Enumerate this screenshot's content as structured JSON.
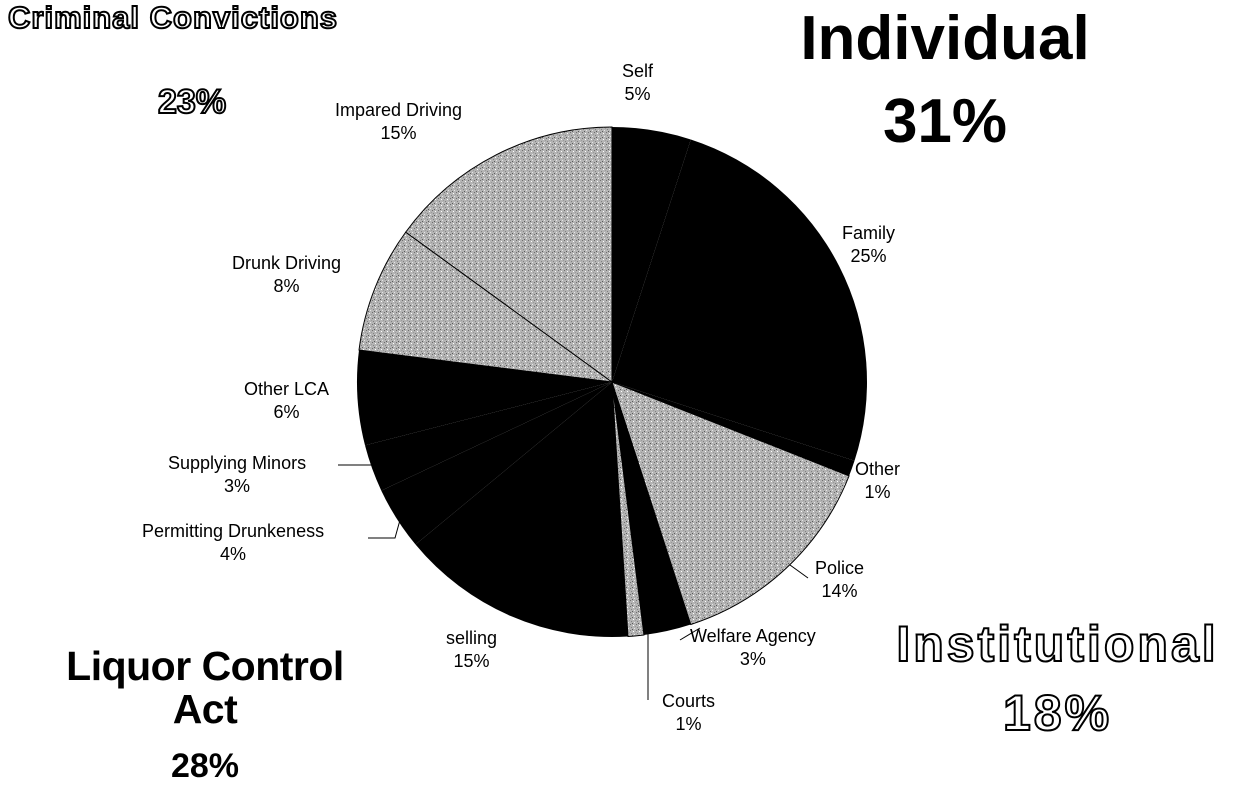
{
  "groups": {
    "criminal": {
      "title": "Criminal Convictions",
      "percent": "23%"
    },
    "individual": {
      "title": "Individual",
      "percent": "31%"
    },
    "lca": {
      "title": "Liquor Control Act",
      "percent": "28%"
    },
    "institutional": {
      "title": "Institutional",
      "percent": "18%"
    }
  },
  "chart_data": {
    "type": "pie",
    "title": "",
    "start_angle_deg": 0,
    "direction": "clockwise",
    "slices": [
      {
        "label": "Self",
        "value": 5,
        "percent_label": "5%",
        "group": "Individual",
        "fill": "dark"
      },
      {
        "label": "Family",
        "value": 25,
        "percent_label": "25%",
        "group": "Individual",
        "fill": "dark"
      },
      {
        "label": "Other",
        "value": 1,
        "percent_label": "1%",
        "group": "Individual",
        "fill": "dark"
      },
      {
        "label": "Police",
        "value": 14,
        "percent_label": "14%",
        "group": "Institutional",
        "fill": "light"
      },
      {
        "label": "Welfare Agency",
        "value": 3,
        "percent_label": "3%",
        "group": "Institutional",
        "fill": "dark"
      },
      {
        "label": "Courts",
        "value": 1,
        "percent_label": "1%",
        "group": "Institutional",
        "fill": "light"
      },
      {
        "label": "selling",
        "value": 15,
        "percent_label": "15%",
        "group": "Liquor Control Act",
        "fill": "dark"
      },
      {
        "label": "Permitting Drunkeness",
        "value": 4,
        "percent_label": "4%",
        "group": "Liquor Control Act",
        "fill": "dark"
      },
      {
        "label": "Supplying Minors",
        "value": 3,
        "percent_label": "3%",
        "group": "Liquor Control Act",
        "fill": "dark"
      },
      {
        "label": "Other LCA",
        "value": 6,
        "percent_label": "6%",
        "group": "Liquor Control Act",
        "fill": "dark"
      },
      {
        "label": "Drunk Driving",
        "value": 8,
        "percent_label": "8%",
        "group": "Criminal Convictions",
        "fill": "light"
      },
      {
        "label": "Impared Driving",
        "value": 15,
        "percent_label": "15%",
        "group": "Criminal Convictions",
        "fill": "light"
      }
    ],
    "colors": {
      "dark": "#000000",
      "light": "#b4b4b4"
    }
  }
}
